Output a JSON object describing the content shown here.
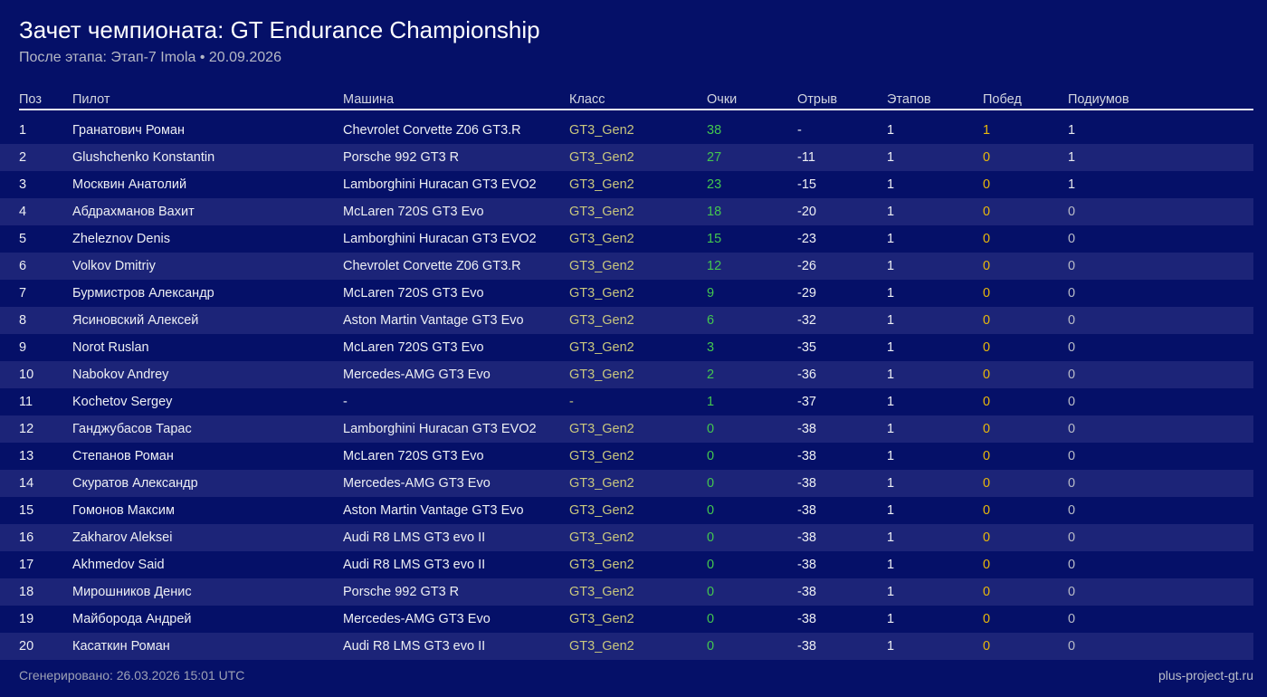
{
  "page": {
    "title": "Зачет чемпионата: GT Endurance Championship",
    "subtitle": "После этапа: Этап-7 Imola • 20.09.2026",
    "footer_generated": "Сгенерировано: 26.03.2026 15:01 UTC",
    "footer_site": "plus-project-gt.ru"
  },
  "colors": {
    "background": "#051068",
    "row_alt": "#1c2478",
    "text_primary": "#edeff3",
    "points_green": "#43c64f",
    "class_khaki": "#c9c77e",
    "wins_gold": "#e9b80b",
    "header_divider": "#e9eaef"
  },
  "table": {
    "headers": [
      "Поз",
      "Пилот",
      "Машина",
      "Класс",
      "Очки",
      "Отрыв",
      "Этапов",
      "Побед",
      "Подиумов"
    ],
    "rows": [
      {
        "pos": "1",
        "pilot": "Гранатович Роман",
        "car": "Chevrolet Corvette Z06 GT3.R",
        "class": "GT3_Gen2",
        "points": "38",
        "gap": "-",
        "stages": "1",
        "wins": "1",
        "podiums": "1"
      },
      {
        "pos": "2",
        "pilot": "Glushchenko Konstantin",
        "car": "Porsche 992 GT3 R",
        "class": "GT3_Gen2",
        "points": "27",
        "gap": "-11",
        "stages": "1",
        "wins": "0",
        "podiums": "1"
      },
      {
        "pos": "3",
        "pilot": "Москвин Анатолий",
        "car": "Lamborghini Huracan GT3 EVO2",
        "class": "GT3_Gen2",
        "points": "23",
        "gap": "-15",
        "stages": "1",
        "wins": "0",
        "podiums": "1"
      },
      {
        "pos": "4",
        "pilot": "Абдрахманов Вахит",
        "car": "McLaren 720S GT3 Evo",
        "class": "GT3_Gen2",
        "points": "18",
        "gap": "-20",
        "stages": "1",
        "wins": "0",
        "podiums": "0"
      },
      {
        "pos": "5",
        "pilot": "Zheleznov Denis",
        "car": "Lamborghini Huracan GT3 EVO2",
        "class": "GT3_Gen2",
        "points": "15",
        "gap": "-23",
        "stages": "1",
        "wins": "0",
        "podiums": "0"
      },
      {
        "pos": "6",
        "pilot": "Volkov Dmitriy",
        "car": "Chevrolet Corvette Z06 GT3.R",
        "class": "GT3_Gen2",
        "points": "12",
        "gap": "-26",
        "stages": "1",
        "wins": "0",
        "podiums": "0"
      },
      {
        "pos": "7",
        "pilot": "Бурмистров Александр",
        "car": "McLaren 720S GT3 Evo",
        "class": "GT3_Gen2",
        "points": "9",
        "gap": "-29",
        "stages": "1",
        "wins": "0",
        "podiums": "0"
      },
      {
        "pos": "8",
        "pilot": "Ясиновский Алексей",
        "car": "Aston Martin Vantage GT3 Evo",
        "class": "GT3_Gen2",
        "points": "6",
        "gap": "-32",
        "stages": "1",
        "wins": "0",
        "podiums": "0"
      },
      {
        "pos": "9",
        "pilot": "Norot Ruslan",
        "car": "McLaren 720S GT3 Evo",
        "class": "GT3_Gen2",
        "points": "3",
        "gap": "-35",
        "stages": "1",
        "wins": "0",
        "podiums": "0"
      },
      {
        "pos": "10",
        "pilot": "Nabokov Andrey",
        "car": "Mercedes-AMG GT3 Evo",
        "class": "GT3_Gen2",
        "points": "2",
        "gap": "-36",
        "stages": "1",
        "wins": "0",
        "podiums": "0"
      },
      {
        "pos": "11",
        "pilot": "Kochetov Sergey",
        "car": "-",
        "class": "-",
        "points": "1",
        "gap": "-37",
        "stages": "1",
        "wins": "0",
        "podiums": "0"
      },
      {
        "pos": "12",
        "pilot": "Ганджубасов Тарас",
        "car": "Lamborghini Huracan GT3 EVO2",
        "class": "GT3_Gen2",
        "points": "0",
        "gap": "-38",
        "stages": "1",
        "wins": "0",
        "podiums": "0"
      },
      {
        "pos": "13",
        "pilot": "Степанов Роман",
        "car": "McLaren 720S GT3 Evo",
        "class": "GT3_Gen2",
        "points": "0",
        "gap": "-38",
        "stages": "1",
        "wins": "0",
        "podiums": "0"
      },
      {
        "pos": "14",
        "pilot": "Скуратов Александр",
        "car": "Mercedes-AMG GT3 Evo",
        "class": "GT3_Gen2",
        "points": "0",
        "gap": "-38",
        "stages": "1",
        "wins": "0",
        "podiums": "0"
      },
      {
        "pos": "15",
        "pilot": "Гомонов Максим",
        "car": "Aston Martin Vantage GT3 Evo",
        "class": "GT3_Gen2",
        "points": "0",
        "gap": "-38",
        "stages": "1",
        "wins": "0",
        "podiums": "0"
      },
      {
        "pos": "16",
        "pilot": "Zakharov Aleksei",
        "car": "Audi R8 LMS GT3 evo II",
        "class": "GT3_Gen2",
        "points": "0",
        "gap": "-38",
        "stages": "1",
        "wins": "0",
        "podiums": "0"
      },
      {
        "pos": "17",
        "pilot": "Akhmedov Said",
        "car": "Audi R8 LMS GT3 evo II",
        "class": "GT3_Gen2",
        "points": "0",
        "gap": "-38",
        "stages": "1",
        "wins": "0",
        "podiums": "0"
      },
      {
        "pos": "18",
        "pilot": "Мирошников Денис",
        "car": "Porsche 992 GT3 R",
        "class": "GT3_Gen2",
        "points": "0",
        "gap": "-38",
        "stages": "1",
        "wins": "0",
        "podiums": "0"
      },
      {
        "pos": "19",
        "pilot": "Майборода Андрей",
        "car": "Mercedes-AMG GT3 Evo",
        "class": "GT3_Gen2",
        "points": "0",
        "gap": "-38",
        "stages": "1",
        "wins": "0",
        "podiums": "0"
      },
      {
        "pos": "20",
        "pilot": "Касаткин Роман",
        "car": "Audi R8 LMS GT3 evo II",
        "class": "GT3_Gen2",
        "points": "0",
        "gap": "-38",
        "stages": "1",
        "wins": "0",
        "podiums": "0"
      }
    ]
  }
}
